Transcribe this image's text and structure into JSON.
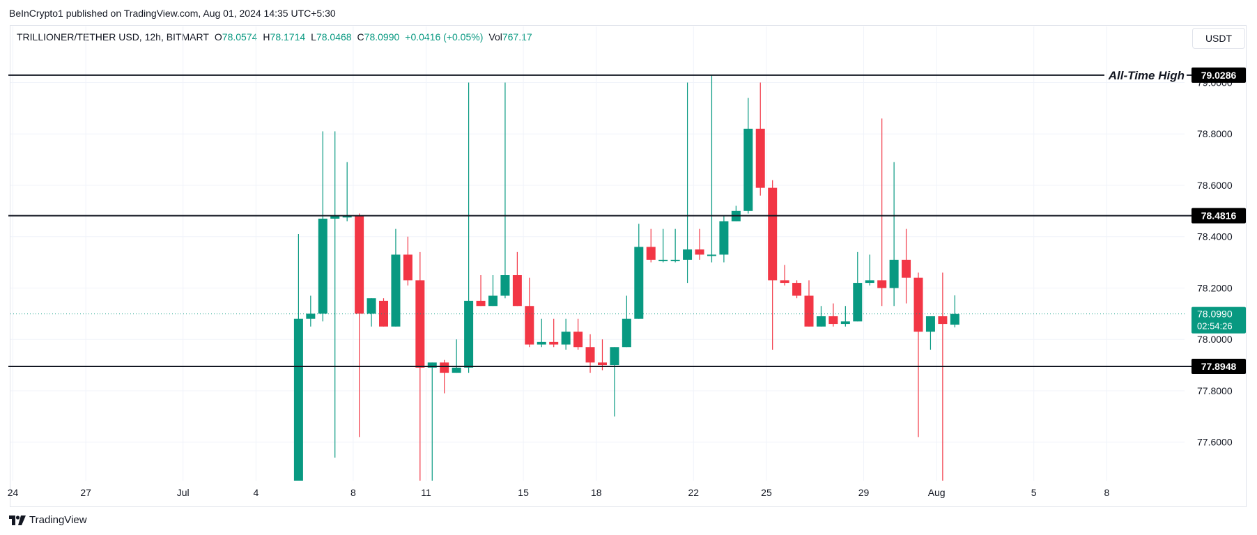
{
  "header": {
    "published": "BeInCrypto1 published on TradingView.com, Aug 01, 2024 14:35 UTC+5:30"
  },
  "legend": {
    "symbol": "TRILLIONER/TETHER USD, 12h, BITMART",
    "open_label": "O",
    "open": "78.0574",
    "high_label": "H",
    "high": "78.1714",
    "low_label": "L",
    "low": "78.0468",
    "close_label": "C",
    "close": "78.0990",
    "change": "+0.0416 (+0.05%)",
    "vol_label": "Vol",
    "vol": "767.17"
  },
  "toolbar": {
    "unit": "USDT"
  },
  "footer": {
    "brand": "TradingView"
  },
  "colors": {
    "up": "#089981",
    "down": "#f23645",
    "grid": "#f0f3fa",
    "line": "#131722"
  },
  "chart_data": {
    "type": "candlestick",
    "interval": "12h",
    "y_ticks": [
      "77.6000",
      "77.8000",
      "78.0000",
      "78.2000",
      "78.4000",
      "78.6000",
      "78.8000",
      "79.0000"
    ],
    "ylim": [
      77.45,
      79.05
    ],
    "x_ticks": [
      {
        "label": "24",
        "day": -7
      },
      {
        "label": "27",
        "day": -4
      },
      {
        "label": "Jul",
        "day": 0
      },
      {
        "label": "4",
        "day": 3
      },
      {
        "label": "8",
        "day": 7
      },
      {
        "label": "11",
        "day": 10
      },
      {
        "label": "15",
        "day": 14
      },
      {
        "label": "18",
        "day": 17
      },
      {
        "label": "22",
        "day": 21
      },
      {
        "label": "25",
        "day": 24
      },
      {
        "label": "29",
        "day": 28
      },
      {
        "label": "Aug",
        "day": 31
      },
      {
        "label": "5",
        "day": 35
      },
      {
        "label": "8",
        "day": 38
      }
    ],
    "xlim": [
      -7.1,
      41.2
    ],
    "levels": [
      {
        "value": 79.0286,
        "label": "79.0286",
        "annotation": "All-Time High"
      },
      {
        "value": 78.4816,
        "label": "78.4816",
        "annotation": ""
      },
      {
        "value": 77.8948,
        "label": "77.8948",
        "annotation": ""
      }
    ],
    "last_price": {
      "value": 78.099,
      "label": "78.0990",
      "countdown": "02:54:26"
    },
    "candles": [
      {
        "t": 4.75,
        "o": 77.45,
        "h": 78.41,
        "l": 77.45,
        "c": 78.08
      },
      {
        "t": 5.25,
        "o": 78.08,
        "h": 78.17,
        "l": 78.05,
        "c": 78.1
      },
      {
        "t": 5.75,
        "o": 78.1,
        "h": 78.81,
        "l": 78.07,
        "c": 78.47
      },
      {
        "t": 6.25,
        "o": 78.47,
        "h": 78.81,
        "l": 77.54,
        "c": 78.48
      },
      {
        "t": 6.75,
        "o": 78.48,
        "h": 78.69,
        "l": 78.46,
        "c": 78.48
      },
      {
        "t": 7.25,
        "o": 78.48,
        "h": 78.49,
        "l": 77.62,
        "c": 78.1
      },
      {
        "t": 7.75,
        "o": 78.1,
        "h": 78.16,
        "l": 78.05,
        "c": 78.16
      },
      {
        "t": 8.25,
        "o": 78.15,
        "h": 78.16,
        "l": 78.05,
        "c": 78.05
      },
      {
        "t": 8.75,
        "o": 78.05,
        "h": 78.43,
        "l": 78.05,
        "c": 78.33
      },
      {
        "t": 9.25,
        "o": 78.33,
        "h": 78.4,
        "l": 78.21,
        "c": 78.23
      },
      {
        "t": 9.75,
        "o": 78.23,
        "h": 78.34,
        "l": 77.45,
        "c": 77.89
      },
      {
        "t": 10.25,
        "o": 77.89,
        "h": 77.91,
        "l": 77.45,
        "c": 77.91
      },
      {
        "t": 10.75,
        "o": 77.91,
        "h": 77.92,
        "l": 77.79,
        "c": 77.87
      },
      {
        "t": 11.25,
        "o": 77.87,
        "h": 78.0,
        "l": 77.87,
        "c": 77.89
      },
      {
        "t": 11.75,
        "o": 77.89,
        "h": 79.0,
        "l": 77.87,
        "c": 78.15
      },
      {
        "t": 12.25,
        "o": 78.15,
        "h": 78.25,
        "l": 78.13,
        "c": 78.13
      },
      {
        "t": 12.75,
        "o": 78.13,
        "h": 78.25,
        "l": 78.13,
        "c": 78.17
      },
      {
        "t": 13.25,
        "o": 78.17,
        "h": 79.0,
        "l": 78.16,
        "c": 78.25
      },
      {
        "t": 13.75,
        "o": 78.25,
        "h": 78.34,
        "l": 78.13,
        "c": 78.13
      },
      {
        "t": 14.25,
        "o": 78.13,
        "h": 78.24,
        "l": 77.97,
        "c": 77.98
      },
      {
        "t": 14.75,
        "o": 77.98,
        "h": 78.08,
        "l": 77.97,
        "c": 77.99
      },
      {
        "t": 15.25,
        "o": 77.99,
        "h": 78.08,
        "l": 77.97,
        "c": 77.98
      },
      {
        "t": 15.75,
        "o": 77.98,
        "h": 78.08,
        "l": 77.96,
        "c": 78.03
      },
      {
        "t": 16.25,
        "o": 78.03,
        "h": 78.08,
        "l": 77.96,
        "c": 77.97
      },
      {
        "t": 16.75,
        "o": 77.97,
        "h": 78.02,
        "l": 77.87,
        "c": 77.91
      },
      {
        "t": 17.25,
        "o": 77.91,
        "h": 78.0,
        "l": 77.88,
        "c": 77.9
      },
      {
        "t": 17.75,
        "o": 77.9,
        "h": 77.97,
        "l": 77.7,
        "c": 77.97
      },
      {
        "t": 18.25,
        "o": 77.97,
        "h": 78.17,
        "l": 77.97,
        "c": 78.08
      },
      {
        "t": 18.75,
        "o": 78.08,
        "h": 78.45,
        "l": 78.08,
        "c": 78.36
      },
      {
        "t": 19.25,
        "o": 78.36,
        "h": 78.43,
        "l": 78.3,
        "c": 78.31
      },
      {
        "t": 19.75,
        "o": 78.31,
        "h": 78.43,
        "l": 78.3,
        "c": 78.31
      },
      {
        "t": 20.25,
        "o": 78.31,
        "h": 78.43,
        "l": 78.3,
        "c": 78.31
      },
      {
        "t": 20.75,
        "o": 78.31,
        "h": 79.0,
        "l": 78.22,
        "c": 78.35
      },
      {
        "t": 21.25,
        "o": 78.35,
        "h": 78.43,
        "l": 78.31,
        "c": 78.33
      },
      {
        "t": 21.75,
        "o": 78.33,
        "h": 79.03,
        "l": 78.3,
        "c": 78.33
      },
      {
        "t": 22.25,
        "o": 78.33,
        "h": 78.48,
        "l": 78.3,
        "c": 78.46
      },
      {
        "t": 22.75,
        "o": 78.46,
        "h": 78.52,
        "l": 78.46,
        "c": 78.5
      },
      {
        "t": 23.25,
        "o": 78.5,
        "h": 78.94,
        "l": 78.49,
        "c": 78.82
      },
      {
        "t": 23.75,
        "o": 78.82,
        "h": 79.0,
        "l": 78.56,
        "c": 78.59
      },
      {
        "t": 24.25,
        "o": 78.59,
        "h": 78.62,
        "l": 77.96,
        "c": 78.23
      },
      {
        "t": 24.75,
        "o": 78.23,
        "h": 78.29,
        "l": 78.21,
        "c": 78.22
      },
      {
        "t": 25.25,
        "o": 78.22,
        "h": 78.23,
        "l": 78.16,
        "c": 78.17
      },
      {
        "t": 25.75,
        "o": 78.17,
        "h": 78.23,
        "l": 78.05,
        "c": 78.05
      },
      {
        "t": 26.25,
        "o": 78.05,
        "h": 78.13,
        "l": 78.05,
        "c": 78.09
      },
      {
        "t": 26.75,
        "o": 78.09,
        "h": 78.14,
        "l": 78.05,
        "c": 78.06
      },
      {
        "t": 27.25,
        "o": 78.06,
        "h": 78.13,
        "l": 78.05,
        "c": 78.07
      },
      {
        "t": 27.75,
        "o": 78.07,
        "h": 78.34,
        "l": 78.07,
        "c": 78.22
      },
      {
        "t": 28.25,
        "o": 78.22,
        "h": 78.33,
        "l": 78.21,
        "c": 78.23
      },
      {
        "t": 28.75,
        "o": 78.23,
        "h": 78.86,
        "l": 78.13,
        "c": 78.2
      },
      {
        "t": 29.25,
        "o": 78.2,
        "h": 78.69,
        "l": 78.13,
        "c": 78.31
      },
      {
        "t": 29.75,
        "o": 78.31,
        "h": 78.43,
        "l": 78.14,
        "c": 78.24
      },
      {
        "t": 30.25,
        "o": 78.24,
        "h": 78.26,
        "l": 77.62,
        "c": 78.03
      },
      {
        "t": 30.75,
        "o": 78.03,
        "h": 78.09,
        "l": 77.96,
        "c": 78.09
      },
      {
        "t": 31.25,
        "o": 78.09,
        "h": 78.26,
        "l": 77.45,
        "c": 78.06
      },
      {
        "t": 31.75,
        "o": 78.0574,
        "h": 78.1714,
        "l": 78.0468,
        "c": 78.099
      }
    ]
  }
}
